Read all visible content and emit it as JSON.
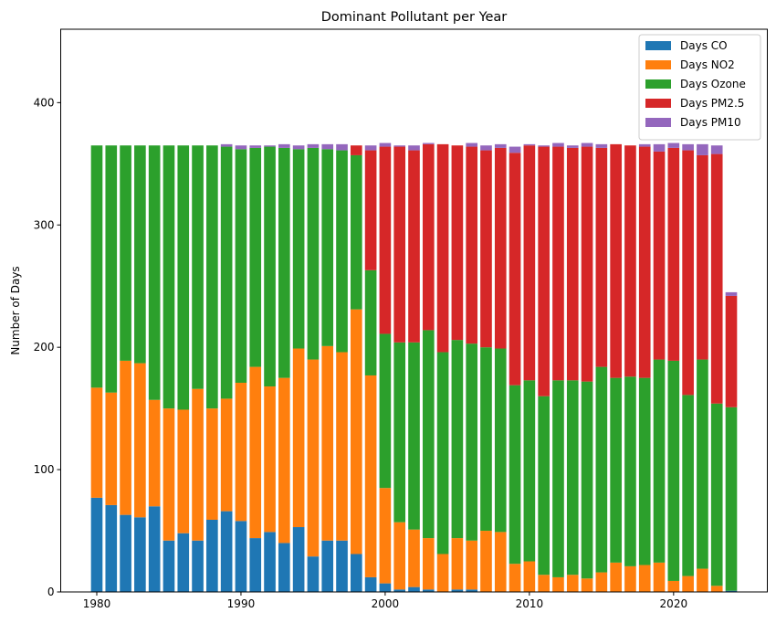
{
  "chart_data": {
    "type": "bar",
    "stacked": true,
    "title": "Dominant Pollutant per Year",
    "xlabel": "",
    "ylabel": "Number of Days",
    "xlim": [
      1977.5,
      2026.5
    ],
    "ylim": [
      0,
      460
    ],
    "xticks": [
      1980,
      1990,
      2000,
      2010,
      2020
    ],
    "yticks": [
      0,
      100,
      200,
      300,
      400
    ],
    "grid": false,
    "legend_position": "top-right",
    "x": [
      1980,
      1981,
      1982,
      1983,
      1984,
      1985,
      1986,
      1987,
      1988,
      1989,
      1990,
      1991,
      1992,
      1993,
      1994,
      1995,
      1996,
      1997,
      1998,
      1999,
      2000,
      2001,
      2002,
      2003,
      2004,
      2005,
      2006,
      2007,
      2008,
      2009,
      2010,
      2011,
      2012,
      2013,
      2014,
      2015,
      2016,
      2017,
      2018,
      2019,
      2020,
      2021,
      2022,
      2023,
      2024
    ],
    "series": [
      {
        "name": "Days CO",
        "color": "#1f77b4",
        "values": [
          77,
          71,
          63,
          61,
          70,
          42,
          48,
          42,
          59,
          66,
          58,
          44,
          49,
          40,
          53,
          29,
          42,
          42,
          31,
          12,
          7,
          2,
          4,
          2,
          0,
          2,
          2,
          0,
          0,
          0,
          0,
          0,
          0,
          0,
          0,
          0,
          0,
          0,
          0,
          0,
          0,
          0,
          0,
          0,
          1
        ]
      },
      {
        "name": "Days NO2",
        "color": "#ff7f0e",
        "values": [
          90,
          92,
          126,
          126,
          87,
          108,
          101,
          124,
          91,
          92,
          113,
          140,
          119,
          135,
          146,
          161,
          159,
          154,
          200,
          165,
          78,
          55,
          47,
          42,
          31,
          42,
          40,
          50,
          49,
          23,
          25,
          14,
          12,
          14,
          11,
          16,
          24,
          21,
          22,
          24,
          9,
          13,
          19,
          5,
          0
        ]
      },
      {
        "name": "Days Ozone",
        "color": "#2ca02c",
        "values": [
          198,
          202,
          176,
          178,
          208,
          215,
          216,
          199,
          215,
          206,
          191,
          179,
          196,
          188,
          163,
          173,
          161,
          165,
          126,
          86,
          126,
          147,
          153,
          170,
          165,
          162,
          161,
          150,
          150,
          146,
          148,
          146,
          161,
          159,
          161,
          168,
          151,
          155,
          153,
          166,
          180,
          148,
          171,
          149,
          150
        ]
      },
      {
        "name": "Days PM2.5",
        "color": "#d62728",
        "values": [
          0,
          0,
          0,
          0,
          0,
          0,
          0,
          0,
          0,
          0,
          0,
          0,
          0,
          0,
          0,
          0,
          0,
          0,
          8,
          98,
          153,
          160,
          157,
          152,
          170,
          159,
          161,
          161,
          164,
          190,
          192,
          204,
          191,
          190,
          192,
          179,
          191,
          189,
          189,
          170,
          174,
          200,
          167,
          204,
          91
        ]
      },
      {
        "name": "Days PM10",
        "color": "#9467bd",
        "values": [
          0,
          0,
          0,
          0,
          0,
          0,
          0,
          0,
          0,
          2,
          3,
          2,
          1,
          3,
          3,
          3,
          4,
          5,
          0,
          4,
          3,
          1,
          4,
          1,
          0,
          0,
          3,
          4,
          3,
          5,
          1,
          1,
          3,
          2,
          3,
          3,
          0,
          0,
          2,
          6,
          4,
          5,
          9,
          7,
          3
        ]
      }
    ]
  }
}
